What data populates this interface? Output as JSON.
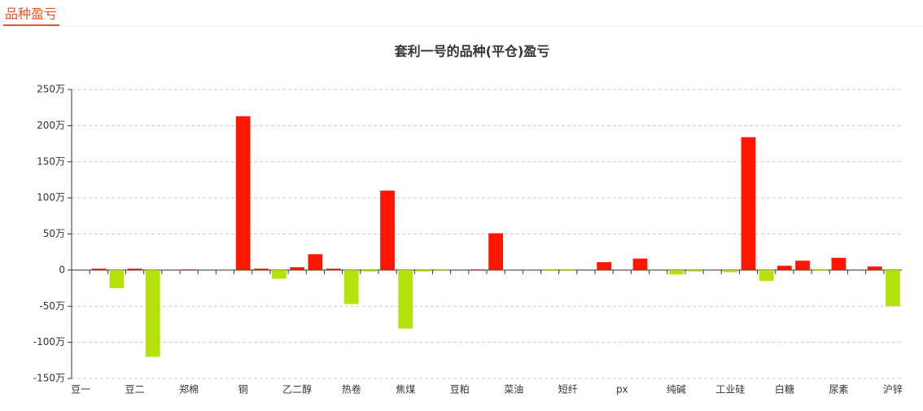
{
  "header": {
    "title": "品种盈亏"
  },
  "chart_data": {
    "type": "bar",
    "title": "套利一号的品种(平仓)盈亏",
    "categories": [
      "豆一",
      null,
      null,
      "豆二",
      null,
      null,
      "郑棉",
      null,
      null,
      "铜",
      null,
      null,
      "乙二醇",
      null,
      null,
      "热卷",
      null,
      null,
      "焦煤",
      null,
      null,
      "豆粕",
      null,
      null,
      "菜油",
      null,
      null,
      "短纤",
      null,
      null,
      "px",
      null,
      null,
      "纯碱",
      null,
      null,
      "工业硅",
      null,
      null,
      "白糖",
      null,
      null,
      "尿素",
      null,
      null,
      "沪锌"
    ],
    "values": [
      0,
      2,
      -25,
      2,
      -120,
      0,
      1,
      0,
      0.5,
      213,
      2,
      -12,
      4,
      22,
      2,
      -47,
      -2,
      110,
      -81,
      -2,
      -1,
      0,
      1,
      51,
      0,
      0.5,
      -1,
      -1,
      0,
      11,
      0,
      16,
      0.5,
      -6,
      -2,
      0.5,
      -3,
      184,
      -15,
      6,
      13,
      -1,
      17,
      0,
      5,
      -50
    ],
    "positive_color": "#ff1500",
    "negative_color": "#b5e20b",
    "ylim": [
      -150,
      250
    ],
    "yticks": [
      {
        "value": -150,
        "label": "-150万"
      },
      {
        "value": -100,
        "label": "-100万"
      },
      {
        "value": -50,
        "label": "-50万"
      },
      0,
      {
        "value": 50,
        "label": "50万"
      },
      {
        "value": 100,
        "label": "100万"
      },
      {
        "value": 150,
        "label": "150万"
      },
      {
        "value": 200,
        "label": "200万"
      },
      {
        "value": 250,
        "label": "250万"
      }
    ],
    "grid": true
  }
}
